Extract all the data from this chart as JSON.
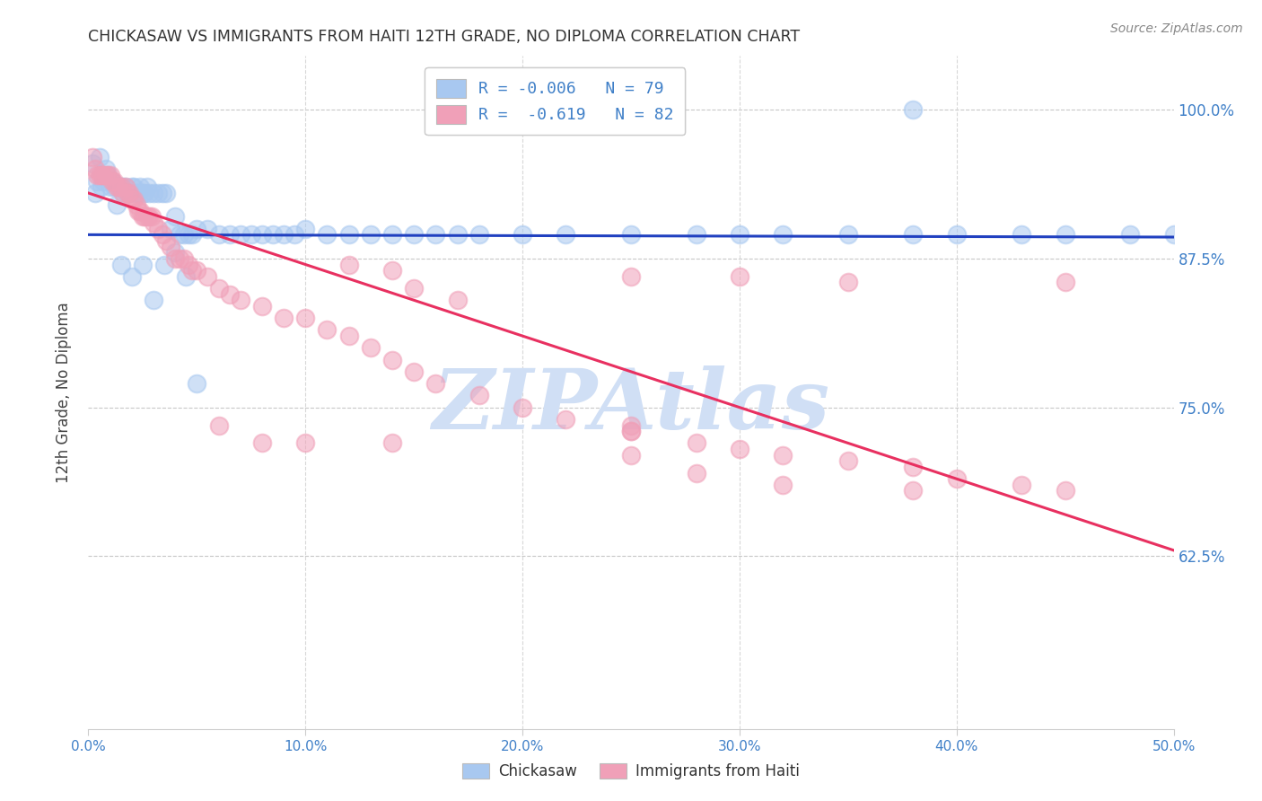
{
  "title": "CHICKASAW VS IMMIGRANTS FROM HAITI 12TH GRADE, NO DIPLOMA CORRELATION CHART",
  "source": "Source: ZipAtlas.com",
  "ylabel": "12th Grade, No Diploma",
  "ytick_labels": [
    "100.0%",
    "87.5%",
    "75.0%",
    "62.5%"
  ],
  "ytick_values": [
    1.0,
    0.875,
    0.75,
    0.625
  ],
  "xlim": [
    0.0,
    0.5
  ],
  "ylim": [
    0.48,
    1.045
  ],
  "blue_color": "#A8C8F0",
  "pink_color": "#F0A0B8",
  "trend_blue": "#2040C0",
  "trend_pink": "#E83060",
  "watermark": "ZIPAtlas",
  "watermark_color": "#D0DFF5",
  "legend_line1": "R = -0.006   N = 79",
  "legend_line2": "R =  -0.619   N = 82",
  "blue_trend_y0": 0.895,
  "blue_trend_y1": 0.893,
  "pink_trend_y0": 0.93,
  "pink_trend_y1": 0.63,
  "chickasaw_x": [
    0.002,
    0.003,
    0.004,
    0.005,
    0.006,
    0.007,
    0.008,
    0.009,
    0.01,
    0.011,
    0.012,
    0.013,
    0.014,
    0.015,
    0.016,
    0.016,
    0.017,
    0.018,
    0.019,
    0.02,
    0.021,
    0.022,
    0.023,
    0.024,
    0.025,
    0.026,
    0.027,
    0.028,
    0.03,
    0.032,
    0.034,
    0.036,
    0.038,
    0.04,
    0.042,
    0.044,
    0.046,
    0.048,
    0.05,
    0.055,
    0.06,
    0.065,
    0.07,
    0.075,
    0.08,
    0.085,
    0.09,
    0.095,
    0.1,
    0.11,
    0.12,
    0.13,
    0.14,
    0.15,
    0.16,
    0.17,
    0.18,
    0.2,
    0.22,
    0.25,
    0.28,
    0.3,
    0.32,
    0.35,
    0.38,
    0.4,
    0.43,
    0.45,
    0.48,
    0.5,
    0.015,
    0.02,
    0.025,
    0.03,
    0.035,
    0.04,
    0.045,
    0.05,
    0.38
  ],
  "chickasaw_y": [
    0.955,
    0.93,
    0.94,
    0.96,
    0.935,
    0.94,
    0.95,
    0.945,
    0.935,
    0.94,
    0.935,
    0.92,
    0.935,
    0.935,
    0.93,
    0.935,
    0.935,
    0.93,
    0.93,
    0.935,
    0.935,
    0.93,
    0.93,
    0.935,
    0.93,
    0.93,
    0.935,
    0.93,
    0.93,
    0.93,
    0.93,
    0.93,
    0.9,
    0.91,
    0.895,
    0.895,
    0.895,
    0.895,
    0.9,
    0.9,
    0.895,
    0.895,
    0.895,
    0.895,
    0.895,
    0.895,
    0.895,
    0.895,
    0.9,
    0.895,
    0.895,
    0.895,
    0.895,
    0.895,
    0.895,
    0.895,
    0.895,
    0.895,
    0.895,
    0.895,
    0.895,
    0.895,
    0.895,
    0.895,
    0.895,
    0.895,
    0.895,
    0.895,
    0.895,
    0.895,
    0.87,
    0.86,
    0.87,
    0.84,
    0.87,
    0.88,
    0.86,
    0.77,
    1.0
  ],
  "haiti_x": [
    0.002,
    0.003,
    0.004,
    0.005,
    0.006,
    0.007,
    0.008,
    0.009,
    0.01,
    0.011,
    0.012,
    0.013,
    0.014,
    0.015,
    0.016,
    0.017,
    0.018,
    0.019,
    0.02,
    0.021,
    0.022,
    0.023,
    0.024,
    0.025,
    0.026,
    0.027,
    0.028,
    0.029,
    0.03,
    0.032,
    0.034,
    0.036,
    0.038,
    0.04,
    0.042,
    0.044,
    0.046,
    0.048,
    0.05,
    0.055,
    0.06,
    0.065,
    0.07,
    0.08,
    0.09,
    0.1,
    0.11,
    0.12,
    0.13,
    0.14,
    0.15,
    0.16,
    0.18,
    0.2,
    0.22,
    0.25,
    0.28,
    0.3,
    0.32,
    0.35,
    0.38,
    0.4,
    0.43,
    0.45,
    0.12,
    0.14,
    0.15,
    0.17,
    0.06,
    0.08,
    0.1,
    0.25,
    0.14,
    0.25,
    0.25,
    0.3,
    0.35,
    0.45,
    0.25,
    0.28,
    0.32,
    0.38
  ],
  "haiti_y": [
    0.96,
    0.95,
    0.945,
    0.945,
    0.945,
    0.945,
    0.945,
    0.945,
    0.945,
    0.94,
    0.94,
    0.935,
    0.935,
    0.935,
    0.93,
    0.935,
    0.93,
    0.93,
    0.925,
    0.925,
    0.92,
    0.915,
    0.915,
    0.91,
    0.91,
    0.91,
    0.91,
    0.91,
    0.905,
    0.9,
    0.895,
    0.89,
    0.885,
    0.875,
    0.875,
    0.875,
    0.87,
    0.865,
    0.865,
    0.86,
    0.85,
    0.845,
    0.84,
    0.835,
    0.825,
    0.825,
    0.815,
    0.81,
    0.8,
    0.79,
    0.78,
    0.77,
    0.76,
    0.75,
    0.74,
    0.73,
    0.72,
    0.715,
    0.71,
    0.705,
    0.7,
    0.69,
    0.685,
    0.68,
    0.87,
    0.865,
    0.85,
    0.84,
    0.735,
    0.72,
    0.72,
    0.735,
    0.72,
    0.73,
    0.86,
    0.86,
    0.855,
    0.855,
    0.71,
    0.695,
    0.685,
    0.68
  ]
}
